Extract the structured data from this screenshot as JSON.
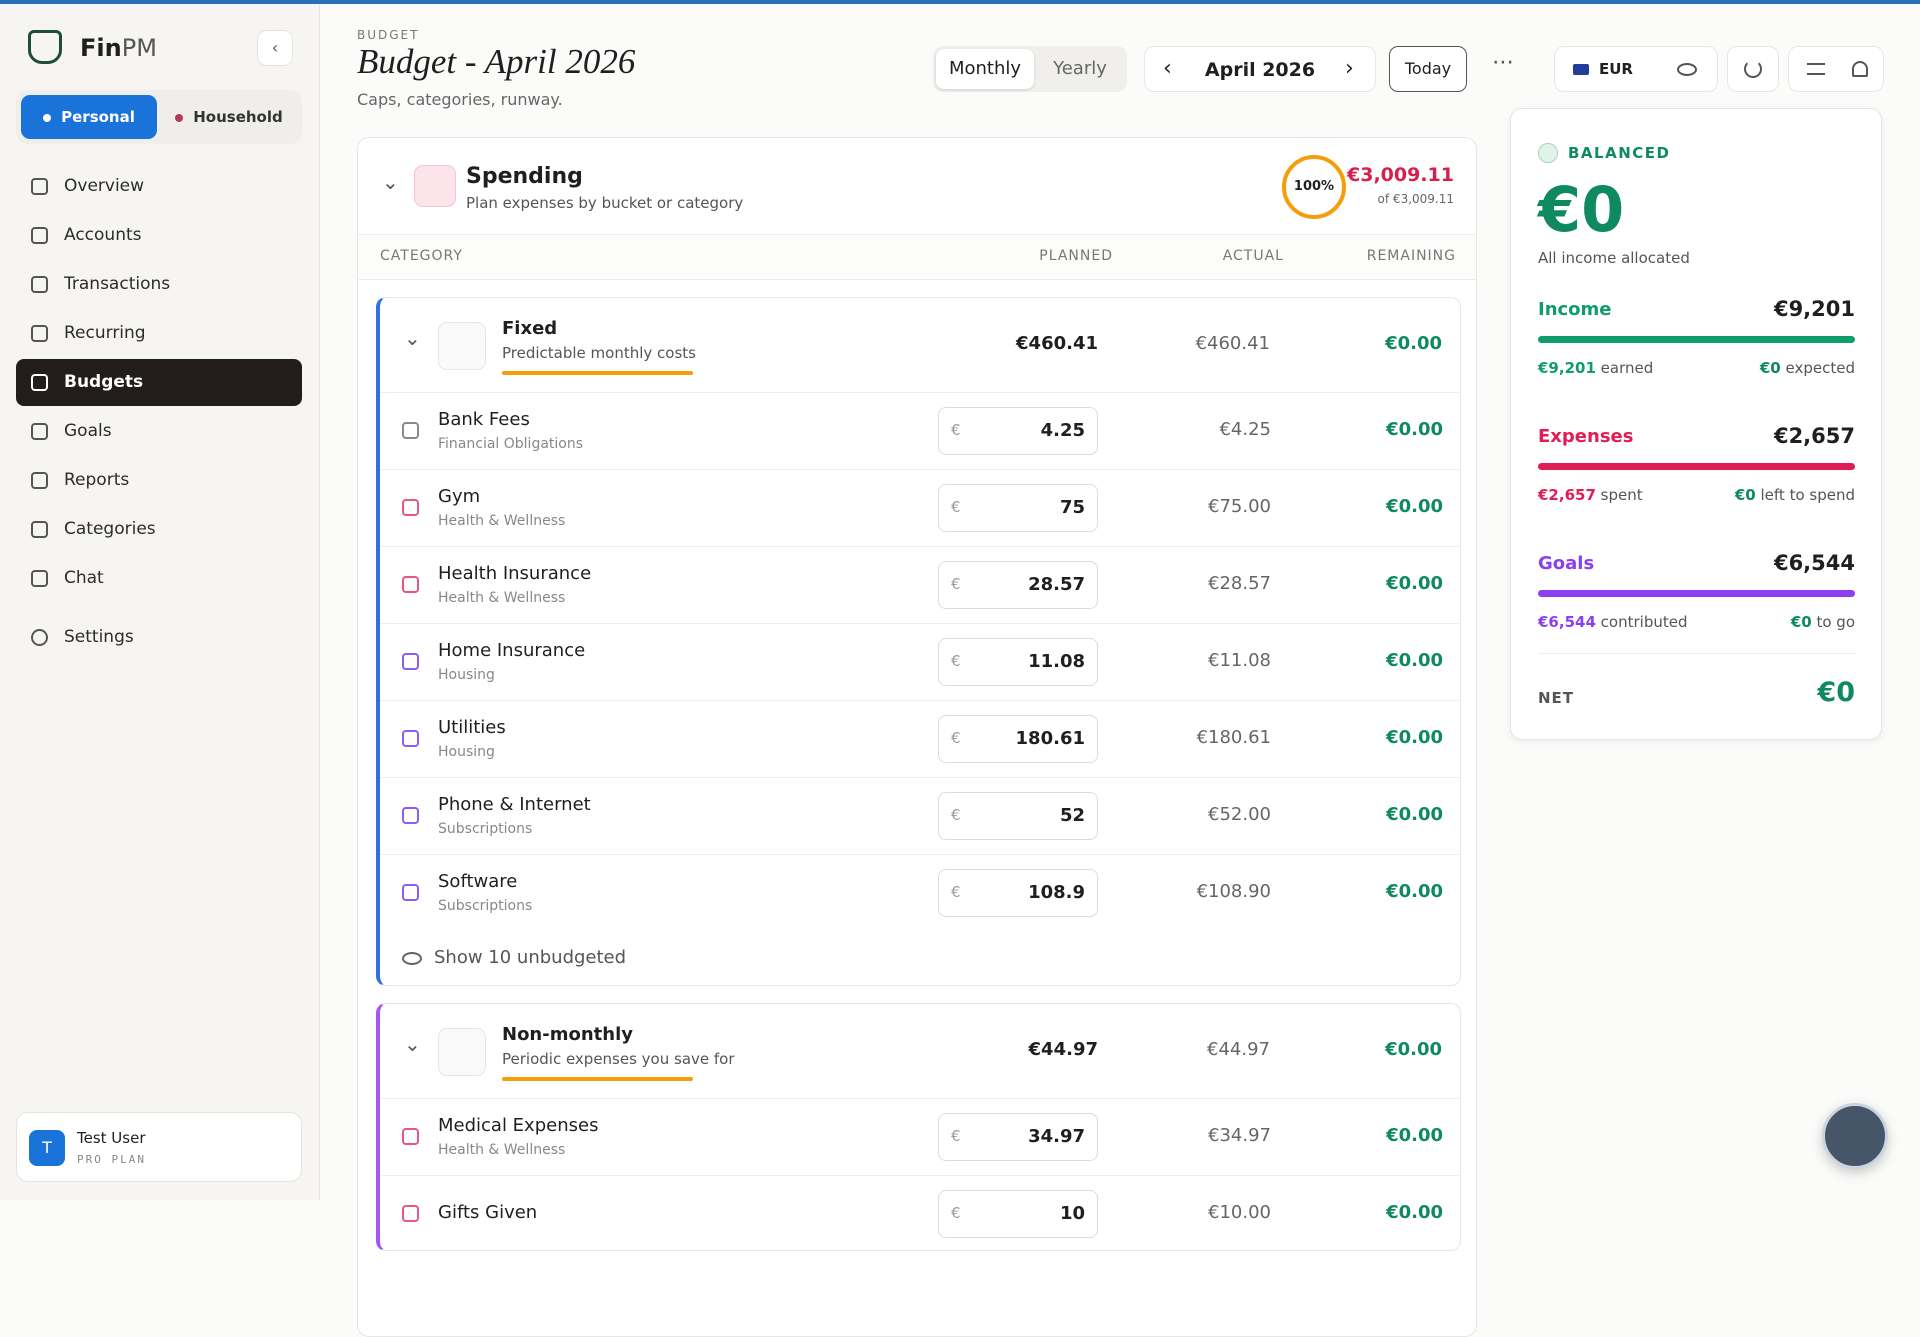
{
  "sidebar": {
    "brand": [
      "Fin",
      "PM"
    ],
    "profiles": [
      "Personal",
      "Household"
    ],
    "nav": [
      {
        "label": "Overview"
      },
      {
        "label": "Accounts"
      },
      {
        "label": "Transactions"
      },
      {
        "label": "Recurring"
      },
      {
        "label": "Budgets",
        "active": true
      },
      {
        "label": "Goals"
      },
      {
        "label": "Reports"
      },
      {
        "label": "Categories"
      },
      {
        "label": "Chat"
      }
    ],
    "settings": "Settings",
    "user": {
      "initial": "T",
      "name": "Test User",
      "plan": "PRO PLAN"
    }
  },
  "header": {
    "eyebrow": "BUDGET",
    "title": "Budget - April 2026",
    "subtitle": "Caps, categories, runway."
  },
  "toolbar": {
    "views": [
      "Monthly",
      "Yearly"
    ],
    "period": "April 2026",
    "today": "Today",
    "currency": "EUR"
  },
  "spending": {
    "title": "Spending",
    "subtitle": "Plan expenses by bucket or category",
    "percent": "100%",
    "total": "€3,009.11",
    "of": "of €3,009.11",
    "columns": [
      "CATEGORY",
      "PLANNED",
      "ACTUAL",
      "REMAINING"
    ],
    "currency_sign": "€",
    "groups": [
      {
        "name": "Fixed",
        "subtitle": "Predictable monthly costs",
        "color": "#2f6fe4",
        "planned": "€460.41",
        "actual": "€460.41",
        "remaining": "€0.00",
        "rows": [
          {
            "name": "Bank Fees",
            "sub": "Financial Obligations",
            "icon_color": "#8a8a8a",
            "planned": 4.25,
            "actual": "€4.25",
            "remaining": "€0.00"
          },
          {
            "name": "Gym",
            "sub": "Health & Wellness",
            "icon_color": "#e8577e",
            "planned": 75,
            "actual": "€75.00",
            "remaining": "€0.00"
          },
          {
            "name": "Health Insurance",
            "sub": "Health & Wellness",
            "icon_color": "#e8577e",
            "planned": 28.57,
            "actual": "€28.57",
            "remaining": "€0.00"
          },
          {
            "name": "Home Insurance",
            "sub": "Housing",
            "icon_color": "#8b5cf6",
            "planned": 11.08,
            "actual": "€11.08",
            "remaining": "€0.00"
          },
          {
            "name": "Utilities",
            "sub": "Housing",
            "icon_color": "#8b5cf6",
            "planned": 180.61,
            "actual": "€180.61",
            "remaining": "€0.00"
          },
          {
            "name": "Phone & Internet",
            "sub": "Subscriptions",
            "icon_color": "#8b5cf6",
            "planned": 52,
            "actual": "€52.00",
            "remaining": "€0.00"
          },
          {
            "name": "Software",
            "sub": "Subscriptions",
            "icon_color": "#8b5cf6",
            "planned": 108.9,
            "actual": "€108.90",
            "remaining": "€0.00"
          }
        ],
        "show_more": "Show 10 unbudgeted"
      },
      {
        "name": "Non-monthly",
        "subtitle": "Periodic expenses you save for",
        "color": "#a855f7",
        "planned": "€44.97",
        "actual": "€44.97",
        "remaining": "€0.00",
        "rows": [
          {
            "name": "Medical Expenses",
            "sub": "Health & Wellness",
            "icon_color": "#e8577e",
            "planned": 34.97,
            "actual": "€34.97",
            "remaining": "€0.00"
          },
          {
            "name": "Gifts Given",
            "icon_color": "#e8577e",
            "planned": 10,
            "actual": "€10.00",
            "remaining": "€0.00"
          }
        ]
      }
    ]
  },
  "summary": {
    "status": "BALANCED",
    "balance": "€0",
    "note": "All income allocated",
    "sections": [
      {
        "label": "Income",
        "amount": "€9,201",
        "color": "#0f9d6b",
        "left_value": "€9,201",
        "left_text": "earned",
        "right_value": "€0",
        "right_text": "expected"
      },
      {
        "label": "Expenses",
        "amount": "€2,657",
        "color": "#e11d55",
        "left_value": "€2,657",
        "left_text": "spent",
        "right_value": "€0",
        "right_text": "left to spend"
      },
      {
        "label": "Goals",
        "amount": "€6,544",
        "color": "#8b3ff0",
        "left_value": "€6,544",
        "left_text": "contributed",
        "right_value": "€0",
        "right_text": "to go"
      }
    ],
    "net_label": "NET",
    "net": "€0"
  }
}
